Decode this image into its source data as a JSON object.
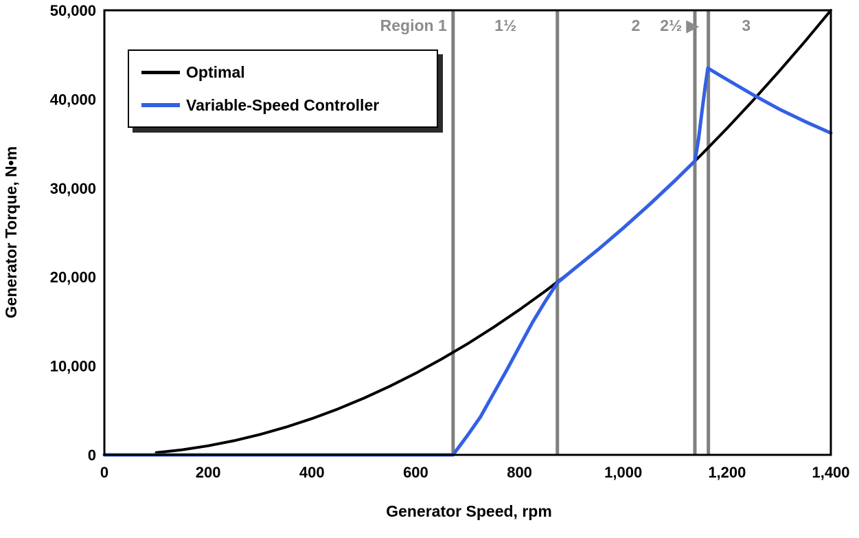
{
  "chart_data": {
    "type": "line",
    "title": "",
    "xlabel": "Generator Speed, rpm",
    "ylabel": "Generator Torque, N•m",
    "xlim": [
      0,
      1400
    ],
    "ylim": [
      0,
      50000
    ],
    "grid": false,
    "legend_position": "top-left",
    "background_color": "#ffffff",
    "axis_color": "#000000",
    "region_line_color": "#808080",
    "region_label_color": "#8c8c8c",
    "x_ticks": [
      {
        "v": 0,
        "label": "0"
      },
      {
        "v": 200,
        "label": "200"
      },
      {
        "v": 400,
        "label": "400"
      },
      {
        "v": 600,
        "label": "600"
      },
      {
        "v": 800,
        "label": "800"
      },
      {
        "v": 1000,
        "label": "1,000"
      },
      {
        "v": 1200,
        "label": "1,200"
      },
      {
        "v": 1400,
        "label": "1,400"
      }
    ],
    "y_ticks": [
      {
        "v": 0,
        "label": "0"
      },
      {
        "v": 10000,
        "label": "10,000"
      },
      {
        "v": 20000,
        "label": "20,000"
      },
      {
        "v": 30000,
        "label": "30,000"
      },
      {
        "v": 40000,
        "label": "40,000"
      },
      {
        "v": 50000,
        "label": "50,000"
      }
    ],
    "region_boundaries_rpm": [
      672,
      873,
      1138,
      1164
    ],
    "region_labels": [
      {
        "text": "Region 1",
        "x": 660,
        "align": "end"
      },
      {
        "text": "1½",
        "x": 773,
        "align": "middle"
      },
      {
        "text": "2",
        "x": 1024,
        "align": "middle"
      },
      {
        "text": "2½ ▶",
        "x": 1108,
        "align": "middle"
      },
      {
        "text": "3",
        "x": 1237,
        "align": "middle"
      }
    ],
    "series": [
      {
        "name": "Optimal",
        "color": "#000000",
        "width": 4,
        "points": [
          [
            100,
            255
          ],
          [
            150,
            574
          ],
          [
            200,
            1020
          ],
          [
            250,
            1594
          ],
          [
            300,
            2296
          ],
          [
            350,
            3125
          ],
          [
            400,
            4082
          ],
          [
            450,
            5166
          ],
          [
            500,
            6378
          ],
          [
            550,
            7716
          ],
          [
            600,
            9184
          ],
          [
            650,
            10777
          ],
          [
            700,
            12500
          ],
          [
            750,
            14350
          ],
          [
            800,
            16327
          ],
          [
            850,
            18431
          ],
          [
            900,
            20663
          ],
          [
            950,
            23023
          ],
          [
            1000,
            25510
          ],
          [
            1050,
            28125
          ],
          [
            1100,
            30868
          ],
          [
            1150,
            33738
          ],
          [
            1200,
            36735
          ],
          [
            1250,
            39860
          ],
          [
            1300,
            43112
          ],
          [
            1350,
            46492
          ],
          [
            1400,
            50000
          ]
        ]
      },
      {
        "name": "Variable-Speed Controller",
        "color": "#3360e4",
        "width": 5,
        "points": [
          [
            0,
            0
          ],
          [
            100,
            0
          ],
          [
            200,
            0
          ],
          [
            300,
            0
          ],
          [
            400,
            0
          ],
          [
            500,
            0
          ],
          [
            600,
            0
          ],
          [
            672,
            0
          ],
          [
            700,
            2200
          ],
          [
            725,
            4300
          ],
          [
            750,
            6900
          ],
          [
            775,
            9500
          ],
          [
            800,
            12200
          ],
          [
            825,
            14900
          ],
          [
            850,
            17300
          ],
          [
            873,
            19350
          ],
          [
            900,
            20660
          ],
          [
            950,
            23020
          ],
          [
            1000,
            25510
          ],
          [
            1050,
            28130
          ],
          [
            1100,
            30870
          ],
          [
            1138,
            33050
          ],
          [
            1145,
            35500
          ],
          [
            1152,
            38800
          ],
          [
            1158,
            41500
          ],
          [
            1163,
            43500
          ],
          [
            1180,
            42900
          ],
          [
            1200,
            42200
          ],
          [
            1250,
            40500
          ],
          [
            1300,
            38900
          ],
          [
            1350,
            37500
          ],
          [
            1400,
            36200
          ]
        ]
      }
    ]
  }
}
